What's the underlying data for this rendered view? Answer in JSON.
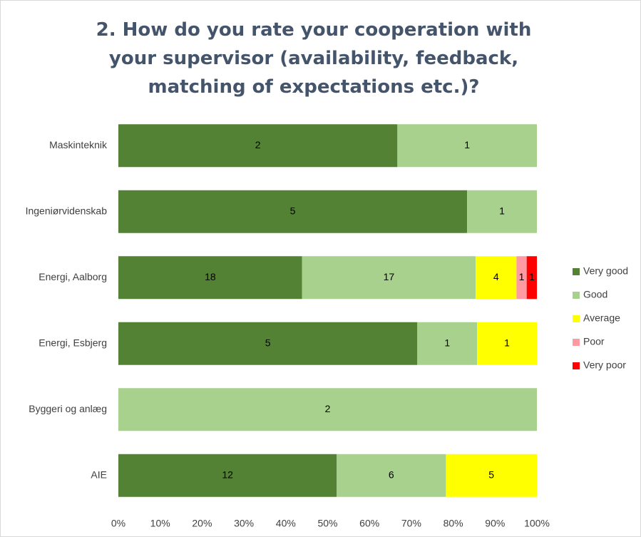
{
  "chart_data": {
    "type": "bar",
    "orientation": "horizontal",
    "stacking": "percent",
    "title": "2. How do you rate your cooperation with your supervisor (availability, feedback, matching of expectations etc.)?",
    "categories": [
      "Maskinteknik",
      "Ingeniørvidenskab",
      "Energi, Aalborg",
      "Energi, Esbjerg",
      "Byggeri og anlæg",
      "AIE"
    ],
    "series": [
      {
        "name": "Very good",
        "color": "#548235",
        "values": [
          2,
          5,
          18,
          5,
          0,
          12
        ]
      },
      {
        "name": "Good",
        "color": "#a9d18e",
        "values": [
          1,
          1,
          17,
          1,
          2,
          6
        ]
      },
      {
        "name": "Average",
        "color": "#ffff00",
        "values": [
          0,
          0,
          4,
          1,
          0,
          5
        ]
      },
      {
        "name": "Poor",
        "color": "#ff9aa2",
        "values": [
          0,
          0,
          1,
          0,
          0,
          0
        ]
      },
      {
        "name": "Very poor",
        "color": "#ff0000",
        "values": [
          0,
          0,
          1,
          0,
          0,
          0
        ]
      }
    ],
    "xlim": [
      0,
      100
    ],
    "xticks": [
      {
        "value": 0,
        "label": "0%"
      },
      {
        "value": 10,
        "label": "10%"
      },
      {
        "value": 20,
        "label": "20%"
      },
      {
        "value": 30,
        "label": "30%"
      },
      {
        "value": 40,
        "label": "40%"
      },
      {
        "value": 50,
        "label": "50%"
      },
      {
        "value": 60,
        "label": "60%"
      },
      {
        "value": 70,
        "label": "70%"
      },
      {
        "value": 80,
        "label": "80%"
      },
      {
        "value": 90,
        "label": "90%"
      },
      {
        "value": 100,
        "label": "100%"
      }
    ],
    "legend": "right"
  }
}
